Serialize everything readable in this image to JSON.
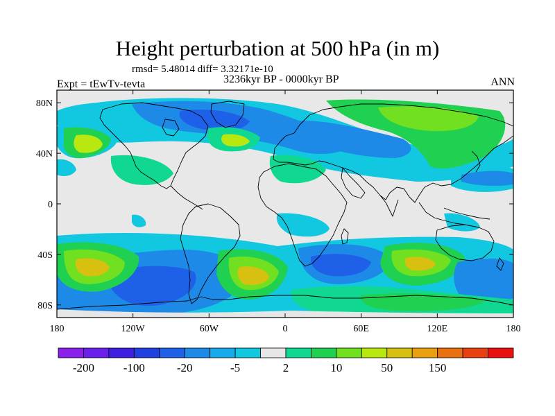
{
  "title": "Height perturbation at 500 hPa (in m)",
  "stats": "rmsd= 5.48014 diff= 3.32171e-10",
  "period": "3236kyr BP - 0000kyr BP",
  "experiment": "Expt = tEwTv-tevta",
  "season": "ANN",
  "map": {
    "projection": "cylindrical-equidistant",
    "lon_range": [
      -180,
      180
    ],
    "lat_range": [
      -90,
      90
    ],
    "lon_ticks": [
      {
        "value": -180,
        "label": "180"
      },
      {
        "value": -120,
        "label": "120W"
      },
      {
        "value": -60,
        "label": "60W"
      },
      {
        "value": 0,
        "label": "0"
      },
      {
        "value": 60,
        "label": "60E"
      },
      {
        "value": 120,
        "label": "120E"
      },
      {
        "value": 180,
        "label": "180"
      }
    ],
    "lat_ticks": [
      {
        "value": 80,
        "label": "80N"
      },
      {
        "value": 40,
        "label": "40N"
      },
      {
        "value": 0,
        "label": "0"
      },
      {
        "value": -40,
        "label": "40S"
      },
      {
        "value": -80,
        "label": "80S"
      }
    ],
    "background_color": "#e8e8e8",
    "coastline_color": "#000000"
  },
  "colorbar": {
    "colors": [
      "#8a20ea",
      "#6a20ea",
      "#4020e0",
      "#2040e0",
      "#1e60e8",
      "#1e8ae8",
      "#18aaea",
      "#12c8e0",
      "#e6e6e6",
      "#10d890",
      "#20d050",
      "#70e020",
      "#b8e810",
      "#d8c010",
      "#e8a010",
      "#e87010",
      "#e84010",
      "#e81010"
    ],
    "labels": [
      "-200",
      "-100",
      "-20",
      "-5",
      "2",
      "10",
      "50",
      "150"
    ]
  }
}
